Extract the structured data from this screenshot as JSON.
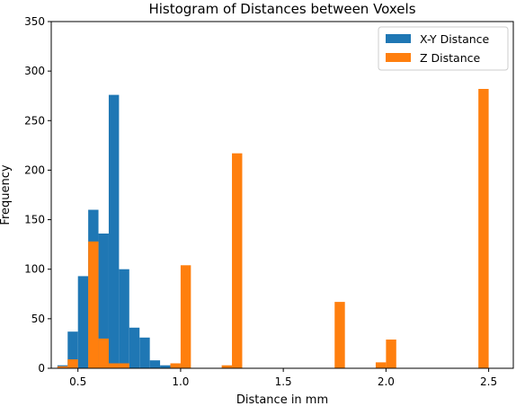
{
  "chart_data": {
    "type": "bar",
    "title": "Histogram of Distances between Voxels",
    "xlabel": "Distance in mm",
    "ylabel": "Frequency",
    "xlim": [
      0.37,
      2.62
    ],
    "ylim": [
      0,
      350
    ],
    "xticks": [
      0.5,
      1.0,
      1.5,
      2.0,
      2.5
    ],
    "xtick_labels": [
      "0.5",
      "1.0",
      "1.5",
      "2.0",
      "2.5"
    ],
    "yticks": [
      0,
      50,
      100,
      150,
      200,
      250,
      300,
      350
    ],
    "ytick_labels": [
      "0",
      "50",
      "100",
      "150",
      "200",
      "250",
      "300",
      "350"
    ],
    "bin_width": 0.05,
    "legend_position": "top-right",
    "series": [
      {
        "name": "X-Y Distance",
        "color": "#1f77b4",
        "bins": [
          {
            "x0": 0.4,
            "value": 3
          },
          {
            "x0": 0.45,
            "value": 37
          },
          {
            "x0": 0.5,
            "value": 93
          },
          {
            "x0": 0.55,
            "value": 160
          },
          {
            "x0": 0.6,
            "value": 136
          },
          {
            "x0": 0.65,
            "value": 276
          },
          {
            "x0": 0.7,
            "value": 100
          },
          {
            "x0": 0.75,
            "value": 41
          },
          {
            "x0": 0.8,
            "value": 31
          },
          {
            "x0": 0.85,
            "value": 8
          },
          {
            "x0": 0.9,
            "value": 3
          }
        ]
      },
      {
        "name": "Z Distance",
        "color": "#ff7f0e",
        "bins": [
          {
            "x0": 0.4,
            "value": 2
          },
          {
            "x0": 0.45,
            "value": 9
          },
          {
            "x0": 0.55,
            "value": 128
          },
          {
            "x0": 0.6,
            "value": 30
          },
          {
            "x0": 0.65,
            "value": 5
          },
          {
            "x0": 0.7,
            "value": 5
          },
          {
            "x0": 0.95,
            "value": 5
          },
          {
            "x0": 1.0,
            "value": 104
          },
          {
            "x0": 1.2,
            "value": 3
          },
          {
            "x0": 1.25,
            "value": 217
          },
          {
            "x0": 1.75,
            "value": 67
          },
          {
            "x0": 1.95,
            "value": 6
          },
          {
            "x0": 2.0,
            "value": 29
          },
          {
            "x0": 2.45,
            "value": 282
          }
        ]
      }
    ]
  }
}
